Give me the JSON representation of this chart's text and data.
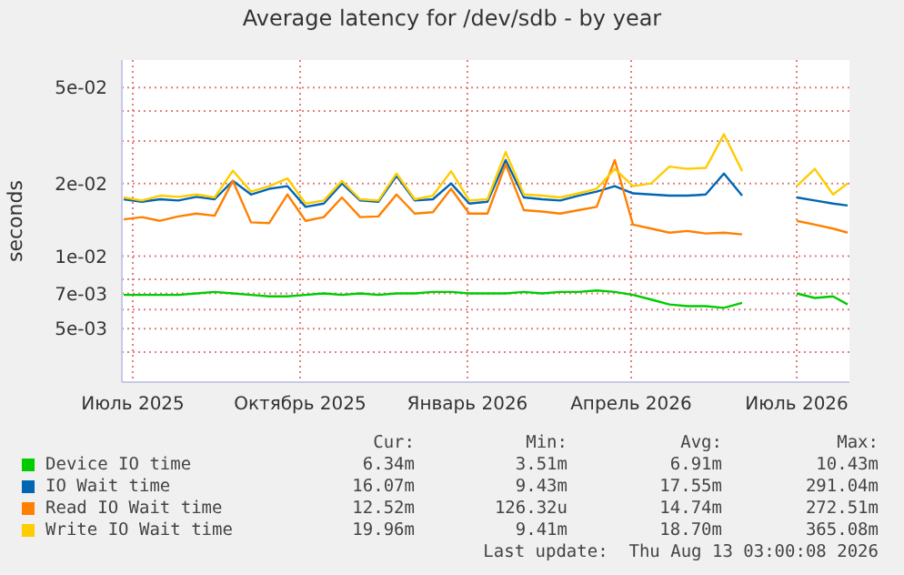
{
  "chart_data": {
    "type": "line",
    "title": "Average latency for /dev/sdb - by year",
    "ylabel": "seconds",
    "log": "y",
    "grid": true,
    "legend": "bottom",
    "line_style": "solid",
    "x": [
      "2025-07-10",
      "2025-07-20",
      "2025-07-30",
      "2025-08-09",
      "2025-08-19",
      "2025-08-29",
      "2025-09-08",
      "2025-09-18",
      "2025-09-28",
      "2025-10-08",
      "2025-10-18",
      "2025-10-28",
      "2025-11-07",
      "2025-11-17",
      "2025-11-27",
      "2025-12-07",
      "2025-12-17",
      "2025-12-27",
      "2026-01-06",
      "2026-01-16",
      "2026-01-26",
      "2026-02-05",
      "2026-02-15",
      "2026-02-25",
      "2026-03-07",
      "2026-03-17",
      "2026-03-27",
      "2026-04-06",
      "2026-04-16",
      "2026-04-26",
      "2026-05-06",
      "2026-05-16",
      "2026-05-26",
      "2026-06-05",
      "2026-06-15",
      "2026-06-25",
      "2026-07-05",
      "2026-07-15",
      "2026-07-25",
      "2026-08-04",
      "2026-08-12"
    ],
    "xlim": [
      "2025-07-09",
      "2026-08-13"
    ],
    "xticks": [
      {
        "value": "2025-07-15",
        "label": "Июль 2025"
      },
      {
        "value": "2025-10-15",
        "label": "Октябрь 2025"
      },
      {
        "value": "2026-01-15",
        "label": "Январь 2026"
      },
      {
        "value": "2026-04-15",
        "label": "Апрель 2026"
      },
      {
        "value": "2026-07-15",
        "label": "Июль 2026"
      }
    ],
    "ylim": [
      0.003,
      0.065
    ],
    "yticks": [
      {
        "value": 0.004,
        "label": null
      },
      {
        "value": 0.005,
        "label": "5e-03"
      },
      {
        "value": 0.006,
        "label": null
      },
      {
        "value": 0.007,
        "label": "7e-03"
      },
      {
        "value": 0.008,
        "label": null
      },
      {
        "value": 0.01,
        "label": "1e-02"
      },
      {
        "value": 0.02,
        "label": "2e-02"
      },
      {
        "value": 0.03,
        "label": null
      },
      {
        "value": 0.04,
        "label": null
      },
      {
        "value": 0.05,
        "label": "5e-02"
      }
    ],
    "series": [
      {
        "name": "Device IO time",
        "color": "#00cc00",
        "values": [
          0.0069,
          0.0069,
          0.0069,
          0.0069,
          0.007,
          0.0071,
          0.007,
          0.0069,
          0.0068,
          0.0068,
          0.0069,
          0.007,
          0.0069,
          0.007,
          0.0069,
          0.007,
          0.007,
          0.0071,
          0.0071,
          0.007,
          0.007,
          0.007,
          0.0071,
          0.007,
          0.0071,
          0.0071,
          0.0072,
          0.0071,
          0.0069,
          0.0066,
          0.0063,
          0.0062,
          0.0062,
          0.0061,
          0.0064,
          null,
          null,
          0.007,
          0.0067,
          0.0068,
          0.0063
        ]
      },
      {
        "name": "IO Wait time",
        "color": "#0066b3",
        "values": [
          0.0172,
          0.0168,
          0.0172,
          0.017,
          0.0176,
          0.0172,
          0.0205,
          0.018,
          0.019,
          0.0195,
          0.016,
          0.0165,
          0.02,
          0.017,
          0.0168,
          0.0215,
          0.017,
          0.0172,
          0.02,
          0.0165,
          0.0168,
          0.025,
          0.0175,
          0.0172,
          0.017,
          0.0178,
          0.0185,
          0.0195,
          0.0182,
          0.018,
          0.0178,
          0.0178,
          0.018,
          0.022,
          0.0178,
          null,
          null,
          0.0175,
          0.017,
          0.0165,
          0.0162
        ]
      },
      {
        "name": "Read IO Wait time",
        "color": "#ff8000",
        "values": [
          0.0142,
          0.0145,
          0.014,
          0.0146,
          0.015,
          0.0147,
          0.0205,
          0.0138,
          0.0137,
          0.018,
          0.014,
          0.0145,
          0.0175,
          0.0145,
          0.0146,
          0.018,
          0.015,
          0.0152,
          0.019,
          0.015,
          0.015,
          0.024,
          0.0155,
          0.0153,
          0.015,
          0.0155,
          0.016,
          0.025,
          0.0135,
          0.013,
          0.0125,
          0.0127,
          0.0124,
          0.0125,
          0.0123,
          null,
          null,
          0.014,
          0.0135,
          0.013,
          0.0125
        ]
      },
      {
        "name": "Write IO Wait time",
        "color": "#ffcc00",
        "values": [
          0.0175,
          0.017,
          0.0178,
          0.0176,
          0.018,
          0.0175,
          0.0226,
          0.0185,
          0.0195,
          0.021,
          0.0165,
          0.017,
          0.0205,
          0.0172,
          0.017,
          0.022,
          0.0172,
          0.0178,
          0.0225,
          0.017,
          0.0172,
          0.027,
          0.018,
          0.0178,
          0.0175,
          0.0182,
          0.019,
          0.023,
          0.0195,
          0.02,
          0.0235,
          0.023,
          0.0232,
          0.032,
          0.0225,
          null,
          null,
          0.0195,
          0.023,
          0.018,
          0.02
        ]
      }
    ],
    "annotations": [
      "Cur:",
      "Min:",
      "Avg:",
      "Max:",
      "6.34m",
      "3.51m",
      "6.91m",
      "10.43m",
      "16.07m",
      "9.43m",
      "17.55m",
      "291.04m",
      "12.52m",
      "126.32u",
      "14.74m",
      "272.51m",
      "19.96m",
      "9.41m",
      "18.70m",
      "365.08m",
      "Last update:  Thu Aug 13 03:00:08 2026"
    ]
  }
}
